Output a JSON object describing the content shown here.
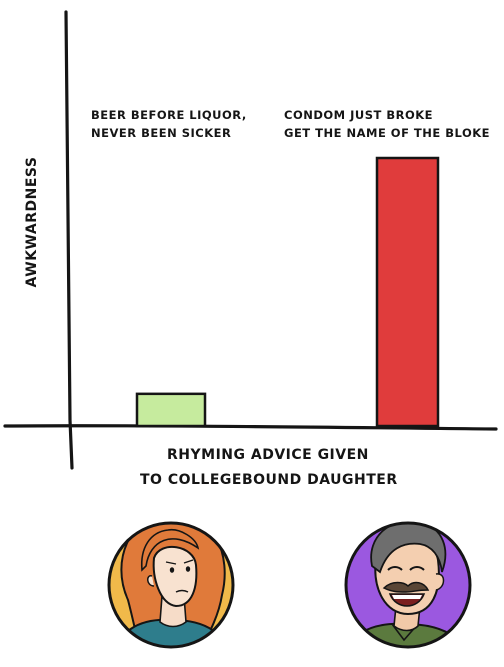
{
  "chart_data": {
    "type": "bar",
    "title": "",
    "ylabel": "AWKWARDNESS",
    "xlabel_lines": [
      "RHYMING ADVICE GIVEN",
      "TO COLLEGEBOUND DAUGHTER"
    ],
    "categories": [
      {
        "label_lines": [
          "BEER BEFORE LIQUOR,",
          "NEVER BEEN SICKER"
        ],
        "color": "#c6eb9e"
      },
      {
        "label_lines": [
          "CONDOM JUST BROKE",
          "GET THE NAME OF THE BLOKE"
        ],
        "color": "#e03c3c"
      }
    ],
    "values": [
      0.12,
      1.0
    ],
    "ylim": [
      0,
      1.1
    ],
    "grid": false,
    "legend": "none"
  },
  "characters": [
    {
      "name": "daughter",
      "circle_color": "#f0b94a",
      "hair_color": "#e07a3a",
      "shirt_color": "#2e7d8c",
      "expression": "worried"
    },
    {
      "name": "father",
      "circle_color": "#9b58e0",
      "hair_color": "#6e6e6e",
      "shirt_color": "#5b7a3e",
      "expression": "laughing"
    }
  ]
}
